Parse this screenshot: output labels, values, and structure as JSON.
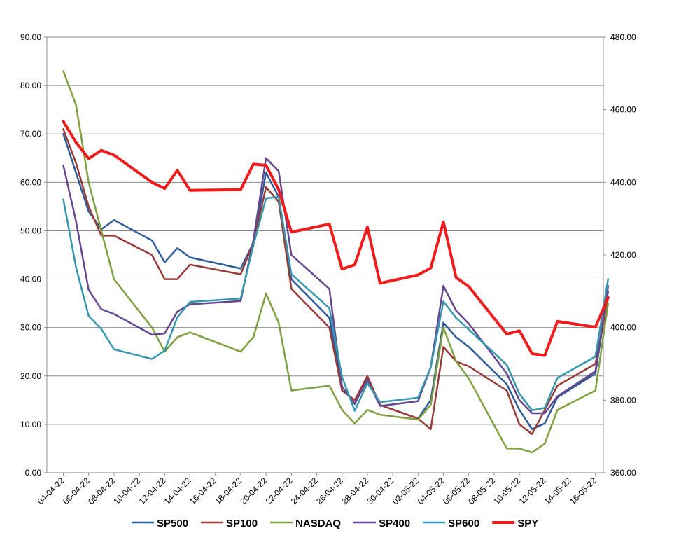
{
  "chart_data": {
    "type": "line",
    "title": "",
    "xlabel": "",
    "ylabel": "",
    "y2label": "",
    "grid": "horizontal",
    "legend_position": "bottom",
    "x_tick_labels": [
      "04-04-22",
      "06-04-22",
      "08-04-22",
      "10-04-22",
      "12-04-22",
      "14-04-22",
      "16-04-22",
      "18-04-22",
      "20-04-22",
      "22-04-22",
      "24-04-22",
      "26-04-22",
      "28-04-22",
      "30-04-22",
      "02-05-22",
      "04-05-22",
      "06-05-22",
      "08-05-22",
      "10-05-22",
      "12-05-22",
      "14-05-22",
      "16-05-22"
    ],
    "y_left": {
      "min": 0,
      "max": 90,
      "step": 10,
      "tick_labels": [
        "0.00",
        "10.00",
        "20.00",
        "30.00",
        "40.00",
        "50.00",
        "60.00",
        "70.00",
        "80.00",
        "90.00"
      ]
    },
    "y_right": {
      "min": 360,
      "max": 480,
      "step": 20,
      "tick_labels": [
        "360.00",
        "380.00",
        "400.00",
        "420.00",
        "440.00",
        "460.00",
        "480.00"
      ]
    },
    "series": [
      {
        "name": "SP500",
        "color": "#2E5C9A",
        "axis": "left",
        "width": 2.5,
        "points": [
          [
            "04-04-22",
            70
          ],
          [
            "05-04-22",
            62
          ],
          [
            "06-04-22",
            54
          ],
          [
            "07-04-22",
            50.3
          ],
          [
            "08-04-22",
            52.2
          ],
          [
            "11-04-22",
            48
          ],
          [
            "12-04-22",
            43.5
          ],
          [
            "13-04-22",
            46.4
          ],
          [
            "14-04-22",
            44.5
          ],
          [
            "18-04-22",
            42.2
          ],
          [
            "19-04-22",
            47.5
          ],
          [
            "20-04-22",
            62
          ],
          [
            "21-04-22",
            57
          ],
          [
            "22-04-22",
            40
          ],
          [
            "25-04-22",
            32
          ],
          [
            "26-04-22",
            17.8
          ],
          [
            "27-04-22",
            14.2
          ],
          [
            "28-04-22",
            19.4
          ],
          [
            "29-04-22",
            14
          ],
          [
            "02-05-22",
            11.2
          ],
          [
            "03-05-22",
            15
          ],
          [
            "04-05-22",
            31
          ],
          [
            "05-05-22",
            28
          ],
          [
            "06-05-22",
            26
          ],
          [
            "09-05-22",
            18.3
          ],
          [
            "10-05-22",
            13
          ],
          [
            "11-05-22",
            9
          ],
          [
            "12-05-22",
            10.2
          ],
          [
            "13-05-22",
            15.6
          ],
          [
            "16-05-22",
            20.5
          ],
          [
            "17-05-22",
            37.5
          ]
        ]
      },
      {
        "name": "SP100",
        "color": "#983A37",
        "axis": "left",
        "width": 2.5,
        "points": [
          [
            "04-04-22",
            71
          ],
          [
            "05-04-22",
            64
          ],
          [
            "06-04-22",
            55
          ],
          [
            "07-04-22",
            49
          ],
          [
            "08-04-22",
            49
          ],
          [
            "11-04-22",
            45
          ],
          [
            "12-04-22",
            40
          ],
          [
            "13-04-22",
            40
          ],
          [
            "14-04-22",
            43
          ],
          [
            "18-04-22",
            41
          ],
          [
            "19-04-22",
            47.5
          ],
          [
            "20-04-22",
            59
          ],
          [
            "21-04-22",
            56
          ],
          [
            "22-04-22",
            38
          ],
          [
            "25-04-22",
            30
          ],
          [
            "26-04-22",
            17
          ],
          [
            "27-04-22",
            15
          ],
          [
            "28-04-22",
            20
          ],
          [
            "29-04-22",
            14
          ],
          [
            "02-05-22",
            11.2
          ],
          [
            "03-05-22",
            9
          ],
          [
            "04-05-22",
            26
          ],
          [
            "05-05-22",
            23
          ],
          [
            "06-05-22",
            22
          ],
          [
            "09-05-22",
            17
          ],
          [
            "10-05-22",
            10
          ],
          [
            "11-05-22",
            8
          ],
          [
            "12-05-22",
            13
          ],
          [
            "13-05-22",
            18
          ],
          [
            "16-05-22",
            22.5
          ],
          [
            "17-05-22",
            36
          ]
        ]
      },
      {
        "name": "NASDAQ",
        "color": "#7FA040",
        "axis": "left",
        "width": 2.5,
        "points": [
          [
            "04-04-22",
            83
          ],
          [
            "05-04-22",
            76
          ],
          [
            "06-04-22",
            60
          ],
          [
            "07-04-22",
            50
          ],
          [
            "08-04-22",
            40
          ],
          [
            "11-04-22",
            30
          ],
          [
            "12-04-22",
            25
          ],
          [
            "13-04-22",
            28
          ],
          [
            "14-04-22",
            29
          ],
          [
            "18-04-22",
            25
          ],
          [
            "19-04-22",
            28
          ],
          [
            "20-04-22",
            37
          ],
          [
            "21-04-22",
            31
          ],
          [
            "22-04-22",
            17
          ],
          [
            "25-04-22",
            18
          ],
          [
            "26-04-22",
            13
          ],
          [
            "27-04-22",
            10.2
          ],
          [
            "28-04-22",
            13
          ],
          [
            "29-04-22",
            12
          ],
          [
            "02-05-22",
            11
          ],
          [
            "03-05-22",
            14
          ],
          [
            "04-05-22",
            30
          ],
          [
            "05-05-22",
            23
          ],
          [
            "06-05-22",
            19.5
          ],
          [
            "09-05-22",
            5
          ],
          [
            "10-05-22",
            5
          ],
          [
            "11-05-22",
            4.2
          ],
          [
            "12-05-22",
            6
          ],
          [
            "13-05-22",
            13
          ],
          [
            "16-05-22",
            17
          ],
          [
            "17-05-22",
            35
          ]
        ]
      },
      {
        "name": "SP400",
        "color": "#65468F",
        "axis": "left",
        "width": 2.5,
        "points": [
          [
            "04-04-22",
            63.5
          ],
          [
            "05-04-22",
            52
          ],
          [
            "06-04-22",
            37.8
          ],
          [
            "07-04-22",
            33.8
          ],
          [
            "08-04-22",
            32.8
          ],
          [
            "11-04-22",
            28.5
          ],
          [
            "12-04-22",
            28.8
          ],
          [
            "13-04-22",
            33.3
          ],
          [
            "14-04-22",
            34.8
          ],
          [
            "18-04-22",
            35.5
          ],
          [
            "19-04-22",
            48
          ],
          [
            "20-04-22",
            65
          ],
          [
            "21-04-22",
            62.3
          ],
          [
            "22-04-22",
            45
          ],
          [
            "25-04-22",
            38
          ],
          [
            "26-04-22",
            17.8
          ],
          [
            "27-04-22",
            14.3
          ],
          [
            "28-04-22",
            19.2
          ],
          [
            "29-04-22",
            13.8
          ],
          [
            "02-05-22",
            14.8
          ],
          [
            "03-05-22",
            21.8
          ],
          [
            "04-05-22",
            38.6
          ],
          [
            "05-05-22",
            33.5
          ],
          [
            "06-05-22",
            30.8
          ],
          [
            "09-05-22",
            20.5
          ],
          [
            "10-05-22",
            15
          ],
          [
            "11-05-22",
            12.3
          ],
          [
            "12-05-22",
            12.3
          ],
          [
            "13-05-22",
            15.8
          ],
          [
            "16-05-22",
            21
          ],
          [
            "17-05-22",
            38.6
          ]
        ]
      },
      {
        "name": "SP600",
        "color": "#3397AE",
        "axis": "left",
        "width": 2.5,
        "points": [
          [
            "04-04-22",
            56.5
          ],
          [
            "05-04-22",
            42.5
          ],
          [
            "06-04-22",
            32.4
          ],
          [
            "07-04-22",
            29.7
          ],
          [
            "08-04-22",
            25.5
          ],
          [
            "11-04-22",
            23.5
          ],
          [
            "12-04-22",
            25.2
          ],
          [
            "13-04-22",
            32.1
          ],
          [
            "14-04-22",
            35.3
          ],
          [
            "18-04-22",
            36
          ],
          [
            "19-04-22",
            47
          ],
          [
            "20-04-22",
            56.7
          ],
          [
            "21-04-22",
            57
          ],
          [
            "22-04-22",
            41
          ],
          [
            "25-04-22",
            34
          ],
          [
            "26-04-22",
            19.8
          ],
          [
            "27-04-22",
            12.8
          ],
          [
            "28-04-22",
            18.5
          ],
          [
            "29-04-22",
            14.6
          ],
          [
            "02-05-22",
            15.5
          ],
          [
            "03-05-22",
            21.8
          ],
          [
            "04-05-22",
            35.4
          ],
          [
            "05-05-22",
            32
          ],
          [
            "06-05-22",
            29.6
          ],
          [
            "09-05-22",
            22.3
          ],
          [
            "10-05-22",
            16.3
          ],
          [
            "11-05-22",
            12.9
          ],
          [
            "12-05-22",
            13.4
          ],
          [
            "13-05-22",
            19.6
          ],
          [
            "16-05-22",
            24
          ],
          [
            "17-05-22",
            40
          ]
        ]
      },
      {
        "name": "SPY",
        "color": "#F21B1B",
        "axis": "right",
        "width": 4,
        "points": [
          [
            "04-04-22",
            456.8
          ],
          [
            "05-04-22",
            451.0
          ],
          [
            "06-04-22",
            446.5
          ],
          [
            "07-04-22",
            448.8
          ],
          [
            "08-04-22",
            447.5
          ],
          [
            "11-04-22",
            440.0
          ],
          [
            "12-04-22",
            438.3
          ],
          [
            "13-04-22",
            443.3
          ],
          [
            "14-04-22",
            437.8
          ],
          [
            "18-04-22",
            438.0
          ],
          [
            "19-04-22",
            445.0
          ],
          [
            "20-04-22",
            444.7
          ],
          [
            "21-04-22",
            438.0
          ],
          [
            "22-04-22",
            426.3
          ],
          [
            "25-04-22",
            428.5
          ],
          [
            "26-04-22",
            416.1
          ],
          [
            "27-04-22",
            417.3
          ],
          [
            "28-04-22",
            427.7
          ],
          [
            "29-04-22",
            412.2
          ],
          [
            "02-05-22",
            414.5
          ],
          [
            "03-05-22",
            416.4
          ],
          [
            "04-05-22",
            429.1
          ],
          [
            "05-05-22",
            413.8
          ],
          [
            "06-05-22",
            411.3
          ],
          [
            "09-05-22",
            398.2
          ],
          [
            "10-05-22",
            399.1
          ],
          [
            "11-05-22",
            392.8
          ],
          [
            "12-05-22",
            392.3
          ],
          [
            "13-05-22",
            401.7
          ],
          [
            "16-05-22",
            400.1
          ],
          [
            "17-05-22",
            408.3
          ]
        ]
      }
    ]
  }
}
